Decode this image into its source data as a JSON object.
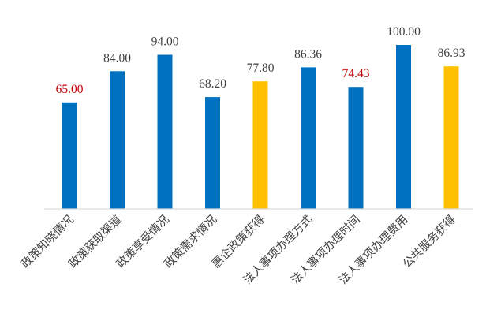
{
  "chart_data": {
    "type": "bar",
    "title": "",
    "xlabel": "",
    "ylabel": "",
    "ylim": [
      0,
      100
    ],
    "grid": false,
    "legend": "none",
    "categories": [
      "政策知晓情况",
      "政策获取渠道",
      "政策享受情况",
      "政策需求情况",
      "惠企政策获得",
      "法人事项办理方式",
      "法人事项办理时间",
      "法人事项办理费用",
      "公共服务获得"
    ],
    "values": [
      65.0,
      84.0,
      94.0,
      68.2,
      77.8,
      86.36,
      74.43,
      100.0,
      86.93
    ],
    "value_labels": [
      "65.00",
      "84.00",
      "94.00",
      "68.20",
      "77.80",
      "86.36",
      "74.43",
      "100.00",
      "86.93"
    ],
    "bar_colors": [
      "#0070C0",
      "#0070C0",
      "#0070C0",
      "#0070C0",
      "#FFC000",
      "#0070C0",
      "#0070C0",
      "#0070C0",
      "#FFC000"
    ],
    "label_colors": [
      "#C00000",
      "#404040",
      "#404040",
      "#404040",
      "#404040",
      "#404040",
      "#C00000",
      "#404040",
      "#404040"
    ]
  }
}
